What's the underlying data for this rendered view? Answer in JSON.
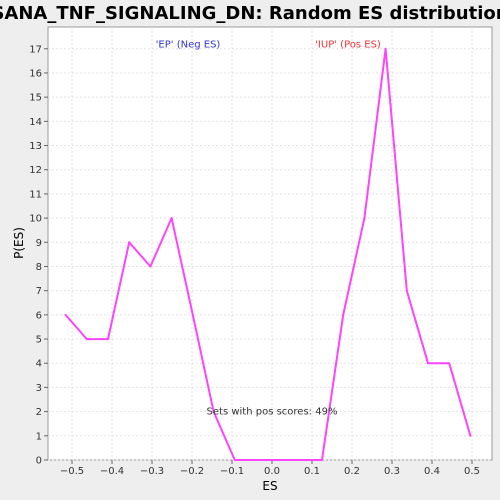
{
  "chart_data": {
    "type": "line",
    "title": "SANA_TNF_SIGNALING_DN: Random ES distribution",
    "xlabel": "ES",
    "ylabel": "P(ES)",
    "xlim": [
      -0.56,
      0.55
    ],
    "ylim": [
      0,
      17.9
    ],
    "x_ticks": [
      -0.5,
      -0.4,
      -0.3,
      -0.2,
      -0.1,
      0.0,
      0.1,
      0.2,
      0.3,
      0.4,
      0.5
    ],
    "x_tick_labels": [
      "−0.5",
      "−0.4",
      "−0.3",
      "−0.2",
      "−0.1",
      "0.0",
      "0.1",
      "0.2",
      "0.3",
      "0.4",
      "0.5"
    ],
    "y_ticks": [
      0,
      1,
      2,
      3,
      4,
      5,
      6,
      7,
      8,
      9,
      10,
      11,
      12,
      13,
      14,
      15,
      16,
      17
    ],
    "y_tick_labels": [
      "0",
      "1",
      "2",
      "3",
      "4",
      "5",
      "6",
      "7",
      "8",
      "9",
      "10",
      "11",
      "12",
      "13",
      "14",
      "15",
      "16",
      "17"
    ],
    "grid": true,
    "series": [
      {
        "color": "#ff44ff",
        "x": [
          -0.516,
          -0.463,
          -0.41,
          -0.357,
          -0.304,
          -0.251,
          -0.198,
          -0.146,
          -0.093,
          -0.04,
          0.013,
          0.066,
          0.125,
          0.178,
          0.231,
          0.284,
          0.337,
          0.39,
          0.443,
          0.496
        ],
        "y": [
          6,
          5,
          5,
          9,
          8,
          10,
          6,
          2,
          0,
          0,
          0,
          0,
          0,
          6,
          10,
          17,
          7,
          4,
          4,
          1
        ]
      }
    ],
    "annotations": [
      {
        "text": "'EP' (Neg ES)",
        "x": -0.21,
        "y_frac": 0.98,
        "color": "#3333cc"
      },
      {
        "text": "'IUP' (Pos ES)",
        "x": 0.19,
        "y_frac": 0.98,
        "color": "#ee3333"
      },
      {
        "text": "Sets with pos scores: 49%",
        "x": 0.0,
        "y": 2.0,
        "color": "#333333"
      }
    ]
  }
}
